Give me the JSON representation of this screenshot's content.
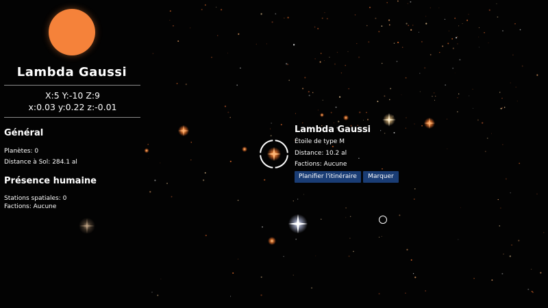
{
  "system": {
    "name": "Lambda Gaussi",
    "star_color": "#f5823a",
    "grid_coords": "X:5 Y:-10 Z:9",
    "precise_coords": "x:0.03 y:0.22 z:-0.01"
  },
  "general": {
    "title": "Général",
    "planets": "Planètes: 0",
    "distance": "Distance à Sol: 284.1 al"
  },
  "human_presence": {
    "title": "Présence humaine",
    "stations": "Stations spatiales: 0",
    "factions": "Factions: Aucune"
  },
  "popup": {
    "title": "Lambda Gaussi",
    "star_type": "Étoile de type M",
    "distance": "Distance: 10.2 al",
    "factions": "Factions: Aucune",
    "plan_route_label": "Planifier l'itinéraire",
    "mark_label": "Marquer"
  },
  "colors": {
    "accent_button": "#1a3d75",
    "selected_star": "#f28a3c"
  }
}
